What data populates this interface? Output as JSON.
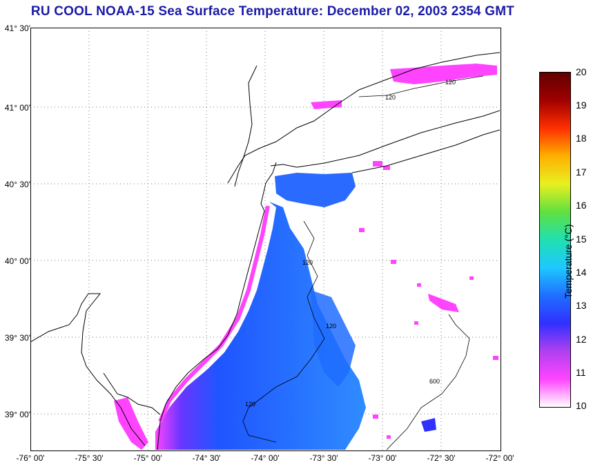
{
  "title": "RU COOL  NOAA-15  Sea Surface Temperature:  December 02, 2003 2354 GMT",
  "colors": {
    "title": "#1a1aa8",
    "land_outline": "#000000",
    "grid": "#777777",
    "scale": [
      "#ffffff",
      "#ff44ff",
      "#b040f0",
      "#3030ff",
      "#1f6fff",
      "#1ec8ff",
      "#20e0b0",
      "#60e040",
      "#e8f020",
      "#ffb000",
      "#ff3000",
      "#a00000",
      "#600000"
    ]
  },
  "map": {
    "lat_labels": [
      "41° 30'",
      "41° 00'",
      "40° 30'",
      "40° 00'",
      "39° 30'",
      "39° 00'"
    ],
    "lon_labels": [
      "-76° 00'",
      "-75° 30'",
      "-75° 00'",
      "-74° 30'",
      "-74° 00'",
      "-73° 30'",
      "-73° 00'",
      "-72° 30'",
      "-72° 00'"
    ],
    "isobaths": [
      "120",
      "120",
      "120",
      "120",
      "120",
      "600"
    ],
    "extent": {
      "lon": [
        -76.0,
        -72.0
      ],
      "lat": [
        38.75,
        41.5
      ]
    }
  },
  "colorbar": {
    "label": "Temperature (°C)",
    "ticks": [
      "20",
      "19",
      "18",
      "17",
      "16",
      "15",
      "14",
      "13",
      "12",
      "11",
      "10"
    ],
    "range": [
      10,
      20
    ]
  }
}
